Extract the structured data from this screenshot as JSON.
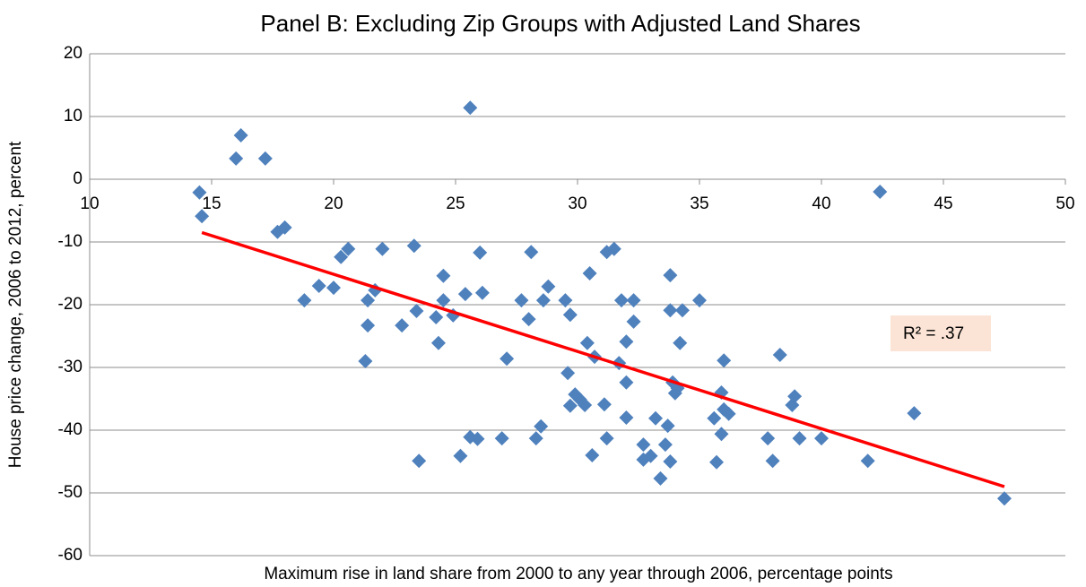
{
  "chart_data": {
    "type": "scatter",
    "title": "Panel B: Excluding Zip Groups with Adjusted Land Shares",
    "x_label": "Maximum rise in land share from 2000 to any year through 2006, percentage points",
    "y_label": "House price change, 2006 to 2012, percent",
    "xlim": [
      10,
      50
    ],
    "xticks": [
      10,
      15,
      20,
      25,
      30,
      35,
      40,
      45,
      50
    ],
    "ylim": [
      -60,
      20
    ],
    "yticks": [
      -60,
      -50,
      -40,
      -30,
      -20,
      -10,
      0,
      10,
      20
    ],
    "grid": true,
    "annotation": "R² = .37",
    "series": [
      {
        "color": "#4f81bd",
        "x": [
          14.5,
          14.6,
          16.2,
          16.0,
          17.2,
          25.6,
          42.4,
          17.7,
          18.0,
          18.8,
          19.4,
          20.0,
          20.3,
          20.6,
          22.0,
          21.4,
          21.7,
          21.4,
          21.3,
          22.8,
          23.3,
          23.4,
          23.5,
          24.2,
          24.3,
          24.5,
          24.5,
          24.9,
          25.2,
          25.4,
          25.6,
          25.9,
          26.0,
          26.1,
          26.9,
          27.1,
          27.7,
          28.0,
          28.1,
          28.3,
          28.5,
          28.6,
          28.8,
          29.5,
          29.7,
          29.6,
          29.7,
          29.9,
          30.1,
          30.3,
          30.4,
          30.5,
          30.6,
          30.7,
          31.1,
          31.2,
          31.2,
          31.5,
          31.7,
          31.8,
          32.0,
          32.0,
          32.0,
          32.3,
          32.3,
          32.7,
          32.7,
          33.0,
          33.2,
          33.4,
          33.6,
          33.7,
          33.8,
          33.8,
          33.8,
          33.9,
          34.0,
          34.1,
          34.2,
          34.3,
          35.0,
          35.6,
          35.7,
          35.9,
          35.9,
          36.0,
          36.0,
          36.2,
          37.8,
          38.0,
          38.3,
          38.8,
          38.9,
          39.1,
          40.0,
          41.9,
          43.8,
          47.5
        ],
        "values": [
          -2.1,
          -5.9,
          7.0,
          3.3,
          3.3,
          11.4,
          -2.0,
          -8.4,
          -7.7,
          -19.3,
          -17.0,
          -17.3,
          -12.4,
          -11.1,
          -11.1,
          -19.3,
          -17.7,
          -23.3,
          -29.0,
          -23.3,
          -10.6,
          -21.0,
          -44.9,
          -22.0,
          -26.1,
          -19.3,
          -15.4,
          -21.7,
          -44.1,
          -18.3,
          -41.1,
          -41.4,
          -11.7,
          -18.1,
          -41.3,
          -28.6,
          -19.3,
          -22.3,
          -11.6,
          -41.3,
          -39.4,
          -19.3,
          -17.1,
          -19.3,
          -21.6,
          -30.9,
          -36.1,
          -34.3,
          -35.1,
          -36.0,
          -26.1,
          -15.0,
          -44.0,
          -28.3,
          -35.9,
          -11.6,
          -41.3,
          -11.1,
          -29.3,
          -19.3,
          -25.9,
          -32.4,
          -38.0,
          -19.3,
          -22.7,
          -42.3,
          -44.7,
          -44.1,
          -38.1,
          -47.7,
          -42.3,
          -39.3,
          -20.9,
          -15.3,
          -45.0,
          -32.4,
          -34.1,
          -33.3,
          -26.1,
          -20.9,
          -19.3,
          -38.1,
          -45.1,
          -40.6,
          -34.0,
          -36.7,
          -28.9,
          -37.4,
          -41.3,
          -44.9,
          -28.0,
          -36.0,
          -34.6,
          -41.3,
          -41.3,
          -44.9,
          -37.3,
          -50.9
        ]
      },
      {
        "type": "line",
        "color": "#ff0000",
        "x": [
          14.6,
          47.5
        ],
        "values": [
          -8.5,
          -49.0
        ]
      }
    ]
  }
}
